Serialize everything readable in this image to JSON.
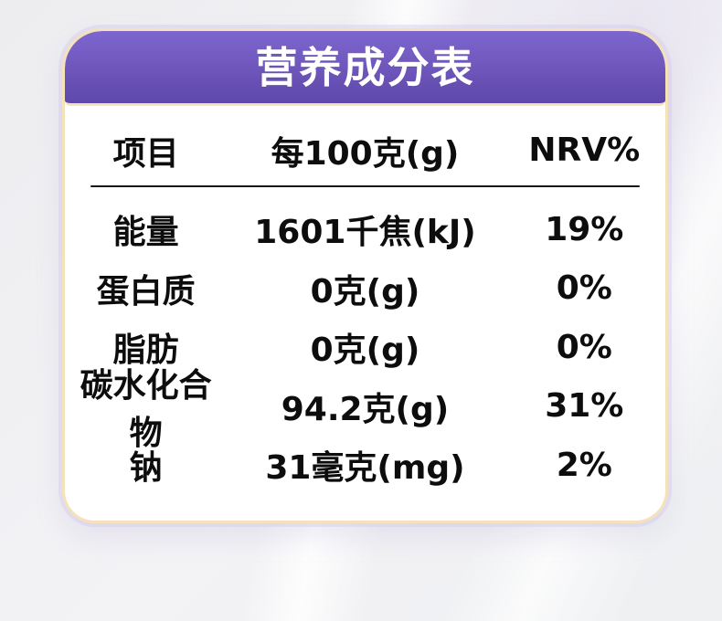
{
  "page": {
    "background_color": "#f0eff2"
  },
  "card": {
    "border_color": "#f6e2ba",
    "glow_color": "#d1c9ec",
    "body_color": "#ffffff",
    "header": {
      "title": "营养成分表",
      "gradient_top": "#7d66cf",
      "gradient_bottom": "#5e48ab",
      "text_color": "#ffffff"
    }
  },
  "table": {
    "text_color": "#0d0d0d",
    "columns": {
      "item": "项目",
      "per_100g": "每100克(g)",
      "nrv": "NRV%"
    },
    "rows": [
      {
        "item": "能量",
        "per_100g": "1601千焦(kJ)",
        "nrv": "19%"
      },
      {
        "item": "蛋白质",
        "per_100g": "0克(g)",
        "nrv": "0%"
      },
      {
        "item": "脂肪",
        "per_100g": "0克(g)",
        "nrv": "0%"
      },
      {
        "item": "碳水化合物",
        "per_100g": "94.2克(g)",
        "nrv": "31%"
      },
      {
        "item": "钠",
        "per_100g": "31毫克(mg)",
        "nrv": "2%"
      }
    ]
  }
}
